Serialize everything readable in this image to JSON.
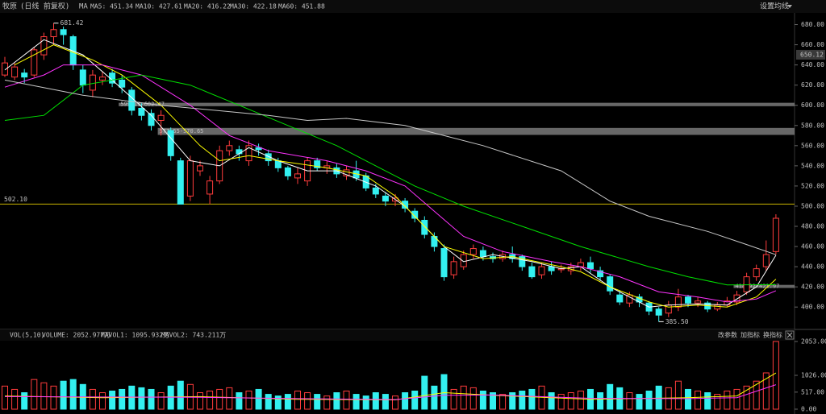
{
  "chart_data": {
    "type": "candlestick",
    "title": "牧原",
    "subtitle": "(日线 前复权)",
    "ma_label": "MA",
    "settings_label": "设置均线",
    "up_color": "#ff3c3c",
    "down_color": "#33f0f0",
    "ylim": [
      381,
      690
    ],
    "yticks": [
      {
        "value": 400,
        "label": "400.00"
      },
      {
        "value": 420,
        "label": "420.00"
      },
      {
        "value": 440,
        "label": "440.00"
      },
      {
        "value": 460,
        "label": "460.00"
      },
      {
        "value": 480,
        "label": "480.00"
      },
      {
        "value": 500,
        "label": "500.00"
      },
      {
        "value": 520,
        "label": "520.00"
      },
      {
        "value": 540,
        "label": "540.00"
      },
      {
        "value": 560,
        "label": "560.00"
      },
      {
        "value": 580,
        "label": "580.00"
      },
      {
        "value": 600,
        "label": "600.00"
      },
      {
        "value": 620,
        "label": "620.00"
      },
      {
        "value": 640,
        "label": "640.00"
      },
      {
        "value": 660,
        "label": "660.00"
      },
      {
        "value": 680,
        "label": "680.00"
      }
    ],
    "open": [
      630,
      628,
      632,
      630,
      650,
      668,
      675,
      668,
      635,
      615,
      625,
      632,
      625,
      615,
      597,
      592,
      585,
      575,
      545,
      510,
      535,
      512,
      525,
      555,
      556,
      545,
      558,
      552,
      545,
      538,
      528,
      525,
      545,
      538,
      538,
      530,
      535,
      530,
      518,
      510,
      505,
      505,
      495,
      486,
      470,
      458,
      432,
      440,
      452,
      456,
      450,
      448,
      452,
      450,
      440,
      432,
      440,
      437,
      436,
      440,
      444,
      436,
      430,
      412,
      404,
      410,
      404,
      398,
      394,
      400,
      410,
      404,
      404,
      398,
      402,
      405,
      415,
      430,
      440,
      455
    ],
    "close": [
      642,
      638,
      628,
      655,
      668,
      675,
      670,
      640,
      620,
      630,
      628,
      622,
      618,
      595,
      590,
      580,
      590,
      550,
      502,
      545,
      540,
      525,
      555,
      560,
      552,
      560,
      556,
      545,
      538,
      530,
      532,
      545,
      538,
      540,
      532,
      536,
      528,
      518,
      512,
      505,
      508,
      498,
      488,
      472,
      460,
      430,
      445,
      452,
      458,
      450,
      448,
      452,
      448,
      440,
      430,
      440,
      436,
      438,
      440,
      444,
      438,
      430,
      416,
      405,
      412,
      405,
      396,
      392,
      402,
      410,
      404,
      406,
      398,
      402,
      406,
      412,
      430,
      438,
      452,
      488
    ],
    "high": [
      648,
      642,
      636,
      658,
      672,
      681.42,
      678,
      670,
      640,
      635,
      634,
      636,
      630,
      618,
      602,
      596,
      595,
      578,
      548,
      550,
      545,
      530,
      560,
      565,
      560,
      565,
      562,
      556,
      548,
      540,
      538,
      548,
      548,
      545,
      542,
      540,
      545,
      533,
      522,
      514,
      512,
      508,
      498,
      490,
      474,
      462,
      450,
      456,
      462,
      460,
      454,
      456,
      460,
      452,
      444,
      444,
      445,
      442,
      444,
      448,
      450,
      440,
      432,
      416,
      415,
      413,
      406,
      400,
      406,
      418,
      412,
      410,
      406,
      405,
      410,
      416,
      434,
      442,
      466,
      492
    ],
    "low": [
      628,
      625,
      622,
      628,
      645,
      660,
      660,
      635,
      612,
      608,
      620,
      618,
      612,
      590,
      585,
      575,
      570,
      545,
      502,
      505,
      530,
      502,
      522,
      550,
      545,
      540,
      550,
      540,
      534,
      526,
      522,
      520,
      535,
      532,
      528,
      526,
      525,
      515,
      508,
      500,
      500,
      494,
      484,
      468,
      455,
      426,
      428,
      437,
      448,
      446,
      444,
      445,
      444,
      436,
      428,
      428,
      432,
      434,
      432,
      436,
      434,
      426,
      412,
      402,
      400,
      400,
      392,
      385.5,
      390,
      396,
      400,
      400,
      395,
      396,
      400,
      402,
      412,
      426,
      436,
      452
    ],
    "ma_series": [
      {
        "name": "MA5: 451.34",
        "color": "#ffffff",
        "x": [
          0,
          4,
          8,
          11,
          15,
          19,
          22,
          25,
          28,
          31,
          34,
          38,
          41,
          45,
          47,
          50,
          54,
          57,
          59,
          62,
          66,
          68,
          71,
          74,
          77,
          79
        ],
        "values": [
          635,
          665,
          650,
          625,
          590,
          545,
          540,
          558,
          545,
          535,
          535,
          520,
          500,
          460,
          445,
          452,
          445,
          438,
          440,
          420,
          400,
          402,
          403,
          402,
          420,
          451.34
        ]
      },
      {
        "name": "MA10: 427.61",
        "color": "#ffff00",
        "x": [
          1,
          5,
          9,
          12,
          16,
          20,
          22,
          25,
          28,
          33,
          37,
          40,
          42,
          45,
          49,
          52,
          57,
          59,
          62,
          66,
          68,
          71,
          74,
          77,
          79
        ],
        "values": [
          640,
          660,
          645,
          630,
          600,
          560,
          545,
          550,
          545,
          538,
          530,
          510,
          490,
          460,
          448,
          450,
          440,
          435,
          420,
          405,
          400,
          402,
          400,
          410,
          427.61
        ]
      },
      {
        "name": "MA20: 416.22",
        "color": "#ff33ff",
        "x": [
          0,
          4,
          6,
          10,
          14,
          19,
          23,
          27,
          33,
          37,
          41,
          44,
          47,
          51,
          56,
          59,
          63,
          67,
          71,
          74,
          77,
          79
        ],
        "values": [
          618,
          630,
          640,
          640,
          630,
          600,
          570,
          555,
          545,
          535,
          520,
          495,
          470,
          455,
          445,
          440,
          430,
          415,
          410,
          405,
          408,
          416.22
        ]
      },
      {
        "name": "MA30: 422.18",
        "color": "#00e000",
        "x": [
          0,
          4,
          8,
          14,
          19,
          24,
          29,
          34,
          38,
          42,
          47,
          53,
          59,
          66,
          70,
          74,
          79
        ],
        "values": [
          585,
          590,
          620,
          630,
          620,
          600,
          580,
          560,
          540,
          520,
          500,
          480,
          460,
          440,
          430,
          422,
          422.18
        ]
      },
      {
        "name": "MA60: 451.88",
        "color": "#c8c8c8",
        "x": [
          0,
          8,
          16,
          27,
          31,
          35,
          41,
          49,
          57,
          62,
          66,
          72,
          76,
          79
        ],
        "values": [
          625,
          610,
          600,
          590,
          585,
          587,
          580,
          560,
          535,
          505,
          490,
          475,
          462,
          451.88
        ]
      }
    ],
    "level_line": {
      "value": 502.1,
      "label": "502.10",
      "color": "#c8b400"
    },
    "bands": [
      {
        "low": 599.11,
        "high": 602.47,
        "label": "599.11-602.47",
        "start": 12
      },
      {
        "low": 570.65,
        "high": 577.55,
        "label": "577.55-570.65",
        "start": 16
      },
      {
        "low": 418.92,
        "high": 421.97,
        "label": "418.92-421.97",
        "start": 75
      }
    ],
    "annotations": [
      {
        "index": 5,
        "value": 681.42,
        "label": "681.42"
      },
      {
        "index": 67,
        "value": 385.5,
        "label": "385.50"
      }
    ],
    "price_tag": {
      "value": 650.12,
      "label": "650.12"
    },
    "volume": {
      "title": "VOL(5,10)",
      "legend": [
        {
          "text": "VOLUME: 2052.977万",
          "color": "#ffffff"
        },
        {
          "text": "MAVOL1: 1095.932万",
          "color": "#ffff00"
        },
        {
          "text": "MAVOL2: 743.211万",
          "color": "#ff33ff"
        }
      ],
      "buttons": [
        "改参数",
        "加指标",
        "换指标"
      ],
      "ylim": [
        0,
        2150
      ],
      "yticks": [
        {
          "value": 0,
          "label": "0.00"
        },
        {
          "value": 517,
          "label": "517.00"
        },
        {
          "value": 1026,
          "label": "1026.00"
        },
        {
          "value": 2053,
          "label": "2053.00"
        }
      ],
      "values": [
        700,
        600,
        500,
        900,
        800,
        700,
        850,
        900,
        750,
        600,
        500,
        550,
        600,
        700,
        650,
        600,
        500,
        700,
        850,
        750,
        500,
        550,
        600,
        650,
        500,
        550,
        600,
        450,
        400,
        450,
        550,
        500,
        450,
        400,
        500,
        550,
        450,
        400,
        500,
        450,
        400,
        500,
        550,
        1000,
        700,
        1050,
        600,
        700,
        650,
        550,
        500,
        450,
        500,
        550,
        600,
        700,
        500,
        450,
        500,
        550,
        600,
        500,
        750,
        650,
        500,
        450,
        550,
        700,
        650,
        850,
        600,
        550,
        500,
        450,
        550,
        600,
        700,
        850,
        1100,
        2052.977
      ],
      "ma_series": [
        {
          "name": "MAVOL1",
          "color": "#ffff00",
          "x": [
            0,
            10,
            20,
            30,
            40,
            45,
            50,
            60,
            70,
            75,
            79
          ],
          "values": [
            400,
            350,
            380,
            300,
            280,
            500,
            420,
            300,
            350,
            400,
            1095.932
          ]
        },
        {
          "name": "MAVOL2",
          "color": "#ff33ff",
          "x": [
            0,
            10,
            20,
            30,
            40,
            45,
            50,
            60,
            70,
            75,
            79
          ],
          "values": [
            380,
            370,
            360,
            320,
            290,
            420,
            430,
            330,
            320,
            350,
            743.211
          ]
        }
      ]
    }
  }
}
